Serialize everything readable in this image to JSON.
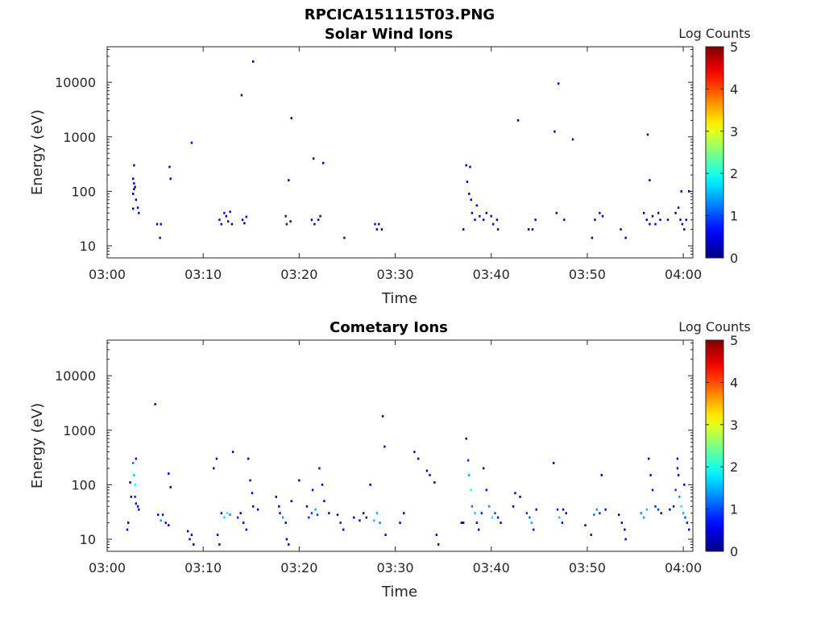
{
  "figure": {
    "title": "RPCICA151115T03.PNG"
  },
  "chart_data": [
    {
      "type": "heatmap",
      "title": "Solar Wind Ions",
      "xlabel": "Time",
      "ylabel": "Energy (eV)",
      "yscale": "log",
      "x_ticks": [
        "03:00",
        "03:10",
        "03:20",
        "03:30",
        "03:40",
        "03:50",
        "04:00"
      ],
      "y_ticks": [
        "10",
        "100",
        "1000",
        "10000"
      ],
      "xlim_min": [
        0,
        61
      ],
      "ylim": [
        6,
        45000
      ],
      "colorbar": {
        "label": "Log Counts",
        "ticks": [
          "0",
          "1",
          "2",
          "3",
          "4",
          "5"
        ],
        "range": [
          0,
          5
        ],
        "colormap": "jet"
      },
      "cells": [
        [
          2.7,
          170,
          0.3
        ],
        [
          2.8,
          140,
          0.3
        ],
        [
          2.8,
          110,
          0.4
        ],
        [
          2.9,
          120,
          0.3
        ],
        [
          2.7,
          90,
          0.3
        ],
        [
          3.0,
          70,
          0.3
        ],
        [
          2.8,
          300,
          0.3
        ],
        [
          3.2,
          50,
          0.3
        ],
        [
          2.7,
          48,
          0.3
        ],
        [
          3.3,
          40,
          0.3
        ],
        [
          5.2,
          25,
          0.3
        ],
        [
          5.6,
          25,
          0.3
        ],
        [
          5.5,
          14,
          0.3
        ],
        [
          6.5,
          280,
          0.3
        ],
        [
          6.6,
          170,
          0.3
        ],
        [
          8.8,
          780,
          0.3
        ],
        [
          11.7,
          30,
          0.3
        ],
        [
          11.9,
          25,
          0.3
        ],
        [
          12.2,
          40,
          0.4
        ],
        [
          12.4,
          35,
          0.3
        ],
        [
          12.6,
          28,
          0.3
        ],
        [
          12.8,
          42,
          0.3
        ],
        [
          13.0,
          25,
          0.3
        ],
        [
          14.0,
          5800,
          0.3
        ],
        [
          14.1,
          30,
          0.3
        ],
        [
          14.3,
          26,
          0.3
        ],
        [
          14.5,
          34,
          0.3
        ],
        [
          15.2,
          24000,
          0.3
        ],
        [
          18.6,
          35,
          0.3
        ],
        [
          18.7,
          25,
          0.3
        ],
        [
          18.9,
          160,
          0.3
        ],
        [
          19.1,
          28,
          0.3
        ],
        [
          19.2,
          2200,
          0.3
        ],
        [
          21.3,
          30,
          0.3
        ],
        [
          21.5,
          400,
          0.3
        ],
        [
          21.6,
          25,
          0.3
        ],
        [
          22.0,
          30,
          0.3
        ],
        [
          22.2,
          35,
          0.3
        ],
        [
          22.5,
          330,
          0.3
        ],
        [
          24.7,
          14,
          0.3
        ],
        [
          27.9,
          25,
          0.3
        ],
        [
          28.1,
          20,
          0.3
        ],
        [
          28.3,
          25,
          0.3
        ],
        [
          28.6,
          20,
          0.3
        ],
        [
          37.1,
          20,
          0.3
        ],
        [
          37.4,
          300,
          0.3
        ],
        [
          37.5,
          150,
          0.3
        ],
        [
          37.8,
          280,
          0.3
        ],
        [
          37.7,
          90,
          0.3
        ],
        [
          37.9,
          70,
          0.3
        ],
        [
          38.0,
          40,
          0.4
        ],
        [
          38.3,
          30,
          0.3
        ],
        [
          38.5,
          55,
          0.3
        ],
        [
          38.8,
          35,
          0.3
        ],
        [
          39.2,
          30,
          0.3
        ],
        [
          39.5,
          40,
          0.3
        ],
        [
          40.0,
          35,
          0.3
        ],
        [
          40.2,
          25,
          0.3
        ],
        [
          40.6,
          30,
          0.3
        ],
        [
          40.7,
          20,
          0.3
        ],
        [
          42.8,
          2000,
          0.3
        ],
        [
          43.9,
          20,
          0.3
        ],
        [
          44.3,
          20,
          0.3
        ],
        [
          44.6,
          30,
          0.3
        ],
        [
          46.6,
          1250,
          0.3
        ],
        [
          47.0,
          9500,
          0.3
        ],
        [
          46.8,
          40,
          0.3
        ],
        [
          47.6,
          30,
          0.3
        ],
        [
          48.5,
          900,
          0.3
        ],
        [
          50.5,
          14,
          0.3
        ],
        [
          50.8,
          30,
          0.3
        ],
        [
          51.3,
          40,
          0.3
        ],
        [
          51.6,
          35,
          0.3
        ],
        [
          53.5,
          20,
          0.3
        ],
        [
          54.0,
          14,
          0.3
        ],
        [
          56.3,
          1100,
          0.3
        ],
        [
          56.5,
          160,
          0.3
        ],
        [
          55.9,
          40,
          0.3
        ],
        [
          56.2,
          30,
          0.3
        ],
        [
          56.5,
          25,
          0.3
        ],
        [
          56.8,
          35,
          0.3
        ],
        [
          57.1,
          25,
          0.3
        ],
        [
          57.4,
          40,
          0.3
        ],
        [
          57.6,
          30,
          0.3
        ],
        [
          58.4,
          30,
          0.3
        ],
        [
          59.2,
          40,
          0.3
        ],
        [
          59.5,
          50,
          0.4
        ],
        [
          59.7,
          30,
          0.3
        ],
        [
          59.9,
          25,
          0.3
        ],
        [
          60.1,
          20,
          0.3
        ],
        [
          60.3,
          30,
          0.3
        ],
        [
          60.6,
          100,
          0.3
        ],
        [
          59.8,
          100,
          0.3
        ]
      ]
    },
    {
      "type": "heatmap",
      "title": "Cometary Ions",
      "xlabel": "Time",
      "ylabel": "Energy (eV)",
      "yscale": "log",
      "x_ticks": [
        "03:00",
        "03:10",
        "03:20",
        "03:30",
        "03:40",
        "03:50",
        "04:00"
      ],
      "y_ticks": [
        "10",
        "100",
        "1000",
        "10000"
      ],
      "xlim_min": [
        0,
        61
      ],
      "ylim": [
        6,
        45000
      ],
      "colorbar": {
        "label": "Log Counts",
        "ticks": [
          "0",
          "1",
          "2",
          "3",
          "4",
          "5"
        ],
        "range": [
          0,
          5
        ],
        "colormap": "jet"
      },
      "cells": [
        [
          2.1,
          15,
          0.3
        ],
        [
          2.2,
          20,
          0.3
        ],
        [
          2.4,
          110,
          0.3
        ],
        [
          2.5,
          60,
          0.3
        ],
        [
          2.7,
          250,
          1.2
        ],
        [
          2.8,
          150,
          1.6
        ],
        [
          2.9,
          100,
          1.9
        ],
        [
          3.0,
          300,
          0.6
        ],
        [
          2.9,
          60,
          0.8
        ],
        [
          3.0,
          45,
          0.6
        ],
        [
          3.2,
          40,
          0.3
        ],
        [
          3.3,
          35,
          0.3
        ],
        [
          5.0,
          3000,
          0.3
        ],
        [
          5.3,
          28,
          0.6
        ],
        [
          5.6,
          22,
          1.4
        ],
        [
          5.8,
          28,
          0.7
        ],
        [
          6.1,
          20,
          0.5
        ],
        [
          6.4,
          160,
          0.3
        ],
        [
          6.6,
          90,
          0.3
        ],
        [
          6.4,
          18,
          0.3
        ],
        [
          8.4,
          14,
          0.3
        ],
        [
          8.6,
          10,
          0.3
        ],
        [
          8.8,
          12,
          0.3
        ],
        [
          9.0,
          8,
          0.3
        ],
        [
          11.1,
          200,
          0.3
        ],
        [
          11.4,
          300,
          0.3
        ],
        [
          11.5,
          12,
          0.3
        ],
        [
          11.7,
          8,
          0.3
        ],
        [
          11.9,
          30,
          0.7
        ],
        [
          12.2,
          25,
          1.7
        ],
        [
          12.5,
          30,
          1.9
        ],
        [
          12.8,
          28,
          1.3
        ],
        [
          13.1,
          400,
          0.3
        ],
        [
          13.6,
          25,
          0.8
        ],
        [
          13.9,
          30,
          0.4
        ],
        [
          14.2,
          20,
          0.6
        ],
        [
          14.5,
          15,
          0.3
        ],
        [
          14.7,
          300,
          0.4
        ],
        [
          14.9,
          120,
          0.5
        ],
        [
          15.1,
          70,
          0.4
        ],
        [
          15.2,
          40,
          0.5
        ],
        [
          15.7,
          35,
          0.3
        ],
        [
          17.6,
          60,
          0.4
        ],
        [
          17.9,
          40,
          0.3
        ],
        [
          18.0,
          30,
          0.5
        ],
        [
          18.3,
          25,
          1.4
        ],
        [
          18.6,
          20,
          0.6
        ],
        [
          18.7,
          10,
          0.3
        ],
        [
          18.9,
          8,
          0.3
        ],
        [
          19.2,
          50,
          0.3
        ],
        [
          20.0,
          120,
          0.3
        ],
        [
          20.8,
          40,
          0.6
        ],
        [
          21.0,
          25,
          0.8
        ],
        [
          21.3,
          30,
          0.9
        ],
        [
          21.4,
          80,
          0.6
        ],
        [
          21.7,
          35,
          1.5
        ],
        [
          21.9,
          28,
          0.9
        ],
        [
          22.1,
          200,
          0.4
        ],
        [
          22.4,
          100,
          0.3
        ],
        [
          22.6,
          50,
          0.3
        ],
        [
          23.1,
          30,
          0.5
        ],
        [
          24.0,
          28,
          0.3
        ],
        [
          24.3,
          20,
          0.7
        ],
        [
          24.6,
          15,
          0.4
        ],
        [
          25.7,
          25,
          0.3
        ],
        [
          26.3,
          22,
          0.5
        ],
        [
          26.7,
          30,
          0.6
        ],
        [
          27.0,
          25,
          0.3
        ],
        [
          27.4,
          100,
          0.3
        ],
        [
          27.8,
          22,
          1.6
        ],
        [
          28.1,
          30,
          1.5
        ],
        [
          28.4,
          20,
          1.2
        ],
        [
          28.7,
          1800,
          0.3
        ],
        [
          28.9,
          500,
          0.3
        ],
        [
          29.0,
          12,
          0.3
        ],
        [
          30.5,
          20,
          0.3
        ],
        [
          30.9,
          30,
          0.3
        ],
        [
          32.0,
          400,
          0.3
        ],
        [
          32.4,
          300,
          0.3
        ],
        [
          33.3,
          180,
          0.3
        ],
        [
          33.6,
          150,
          0.3
        ],
        [
          34.1,
          110,
          0.3
        ],
        [
          34.3,
          12,
          0.3
        ],
        [
          34.5,
          8,
          0.3
        ],
        [
          36.9,
          20,
          0.3
        ],
        [
          37.1,
          20,
          0.5
        ],
        [
          37.4,
          700,
          0.3
        ],
        [
          37.6,
          280,
          0.8
        ],
        [
          37.7,
          150,
          1.5
        ],
        [
          37.9,
          80,
          1.9
        ],
        [
          38.0,
          40,
          1.2
        ],
        [
          38.3,
          30,
          1.6
        ],
        [
          38.5,
          20,
          0.6
        ],
        [
          38.7,
          15,
          0.3
        ],
        [
          39.0,
          30,
          0.8
        ],
        [
          39.2,
          200,
          0.3
        ],
        [
          39.5,
          80,
          0.6
        ],
        [
          39.8,
          40,
          1.4
        ],
        [
          40.1,
          25,
          1.8
        ],
        [
          40.4,
          30,
          1.0
        ],
        [
          40.7,
          25,
          0.6
        ],
        [
          41.0,
          20,
          0.4
        ],
        [
          42.3,
          40,
          0.3
        ],
        [
          42.5,
          70,
          0.3
        ],
        [
          43.0,
          60,
          0.3
        ],
        [
          43.7,
          30,
          0.9
        ],
        [
          44.0,
          25,
          1.1
        ],
        [
          44.2,
          20,
          1.5
        ],
        [
          44.4,
          15,
          0.6
        ],
        [
          44.7,
          35,
          0.5
        ],
        [
          46.5,
          250,
          0.3
        ],
        [
          46.9,
          35,
          0.8
        ],
        [
          47.1,
          25,
          1.6
        ],
        [
          47.5,
          35,
          0.6
        ],
        [
          47.8,
          30,
          0.4
        ],
        [
          47.4,
          20,
          0.6
        ],
        [
          49.8,
          18,
          0.3
        ],
        [
          50.4,
          12,
          0.3
        ],
        [
          50.7,
          28,
          1.2
        ],
        [
          51.0,
          35,
          1.4
        ],
        [
          51.3,
          30,
          0.8
        ],
        [
          51.5,
          150,
          0.3
        ],
        [
          51.9,
          35,
          0.6
        ],
        [
          53.3,
          28,
          0.3
        ],
        [
          53.6,
          20,
          0.4
        ],
        [
          53.9,
          15,
          0.3
        ],
        [
          54.0,
          10,
          0.3
        ],
        [
          55.6,
          30,
          1.3
        ],
        [
          55.9,
          25,
          1.4
        ],
        [
          56.2,
          35,
          1.6
        ],
        [
          56.4,
          300,
          0.3
        ],
        [
          56.6,
          150,
          0.4
        ],
        [
          56.8,
          80,
          0.6
        ],
        [
          57.1,
          40,
          0.8
        ],
        [
          57.4,
          35,
          0.9
        ],
        [
          57.7,
          30,
          0.5
        ],
        [
          58.6,
          35,
          0.3
        ],
        [
          59.0,
          40,
          0.7
        ],
        [
          59.2,
          80,
          0.9
        ],
        [
          59.4,
          200,
          0.4
        ],
        [
          59.5,
          150,
          0.6
        ],
        [
          59.6,
          60,
          1.4
        ],
        [
          59.8,
          40,
          1.8
        ],
        [
          60.0,
          30,
          1.5
        ],
        [
          60.2,
          25,
          1.0
        ],
        [
          60.4,
          20,
          0.7
        ],
        [
          60.6,
          15,
          0.4
        ],
        [
          59.4,
          300,
          0.3
        ],
        [
          60.1,
          100,
          0.5
        ]
      ]
    }
  ]
}
